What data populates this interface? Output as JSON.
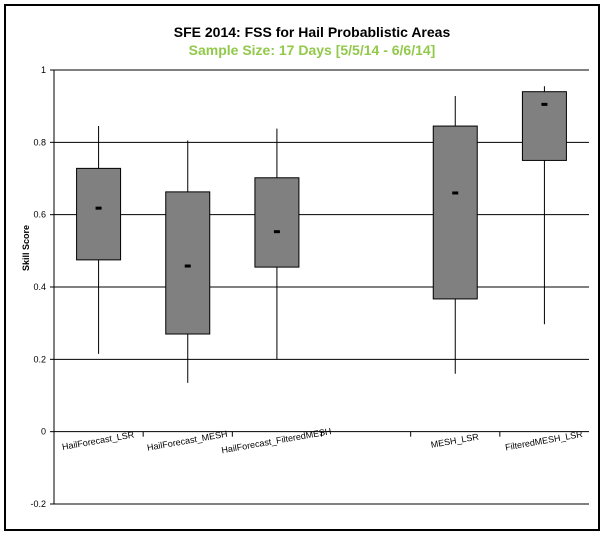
{
  "chart_data": {
    "type": "boxplot",
    "title": "SFE 2014: FSS for Hail Probablistic Areas",
    "subtitle": "Sample Size: 17 Days [5/5/14 - 6/6/14]",
    "ylabel": "Skill Score",
    "ylim": [
      -0.2,
      1.0
    ],
    "yticks": [
      -0.2,
      0,
      0.2,
      0.4,
      0.6,
      0.8,
      1.0
    ],
    "ytick_labels": [
      "-0.2",
      "0",
      "0.2",
      "0.4",
      "0.6",
      "0.8",
      "1"
    ],
    "grid": true,
    "slots": 6,
    "categories": [
      {
        "label": "HailForecast_LSR",
        "slot": 0,
        "min": 0.215,
        "q1": 0.475,
        "median": 0.618,
        "q3": 0.728,
        "max": 0.845
      },
      {
        "label": "HailForecast_MESH",
        "slot": 1,
        "min": 0.135,
        "q1": 0.27,
        "median": 0.458,
        "q3": 0.663,
        "max": 0.805
      },
      {
        "label": "HailForecast_FilteredMESH",
        "slot": 2,
        "min": 0.2,
        "q1": 0.455,
        "median": 0.553,
        "q3": 0.702,
        "max": 0.838
      },
      {
        "label": "MESH_LSR",
        "slot": 4,
        "min": 0.16,
        "q1": 0.367,
        "median": 0.66,
        "q3": 0.845,
        "max": 0.928
      },
      {
        "label": "FilteredMESH_LSR",
        "slot": 5,
        "min": 0.297,
        "q1": 0.75,
        "median": 0.905,
        "q3": 0.94,
        "max": 0.955
      }
    ],
    "colors": {
      "box_fill": "#808080",
      "box_stroke": "#000000",
      "title": "#000000",
      "subtitle": "#92c94b",
      "grid": "#000000"
    }
  }
}
